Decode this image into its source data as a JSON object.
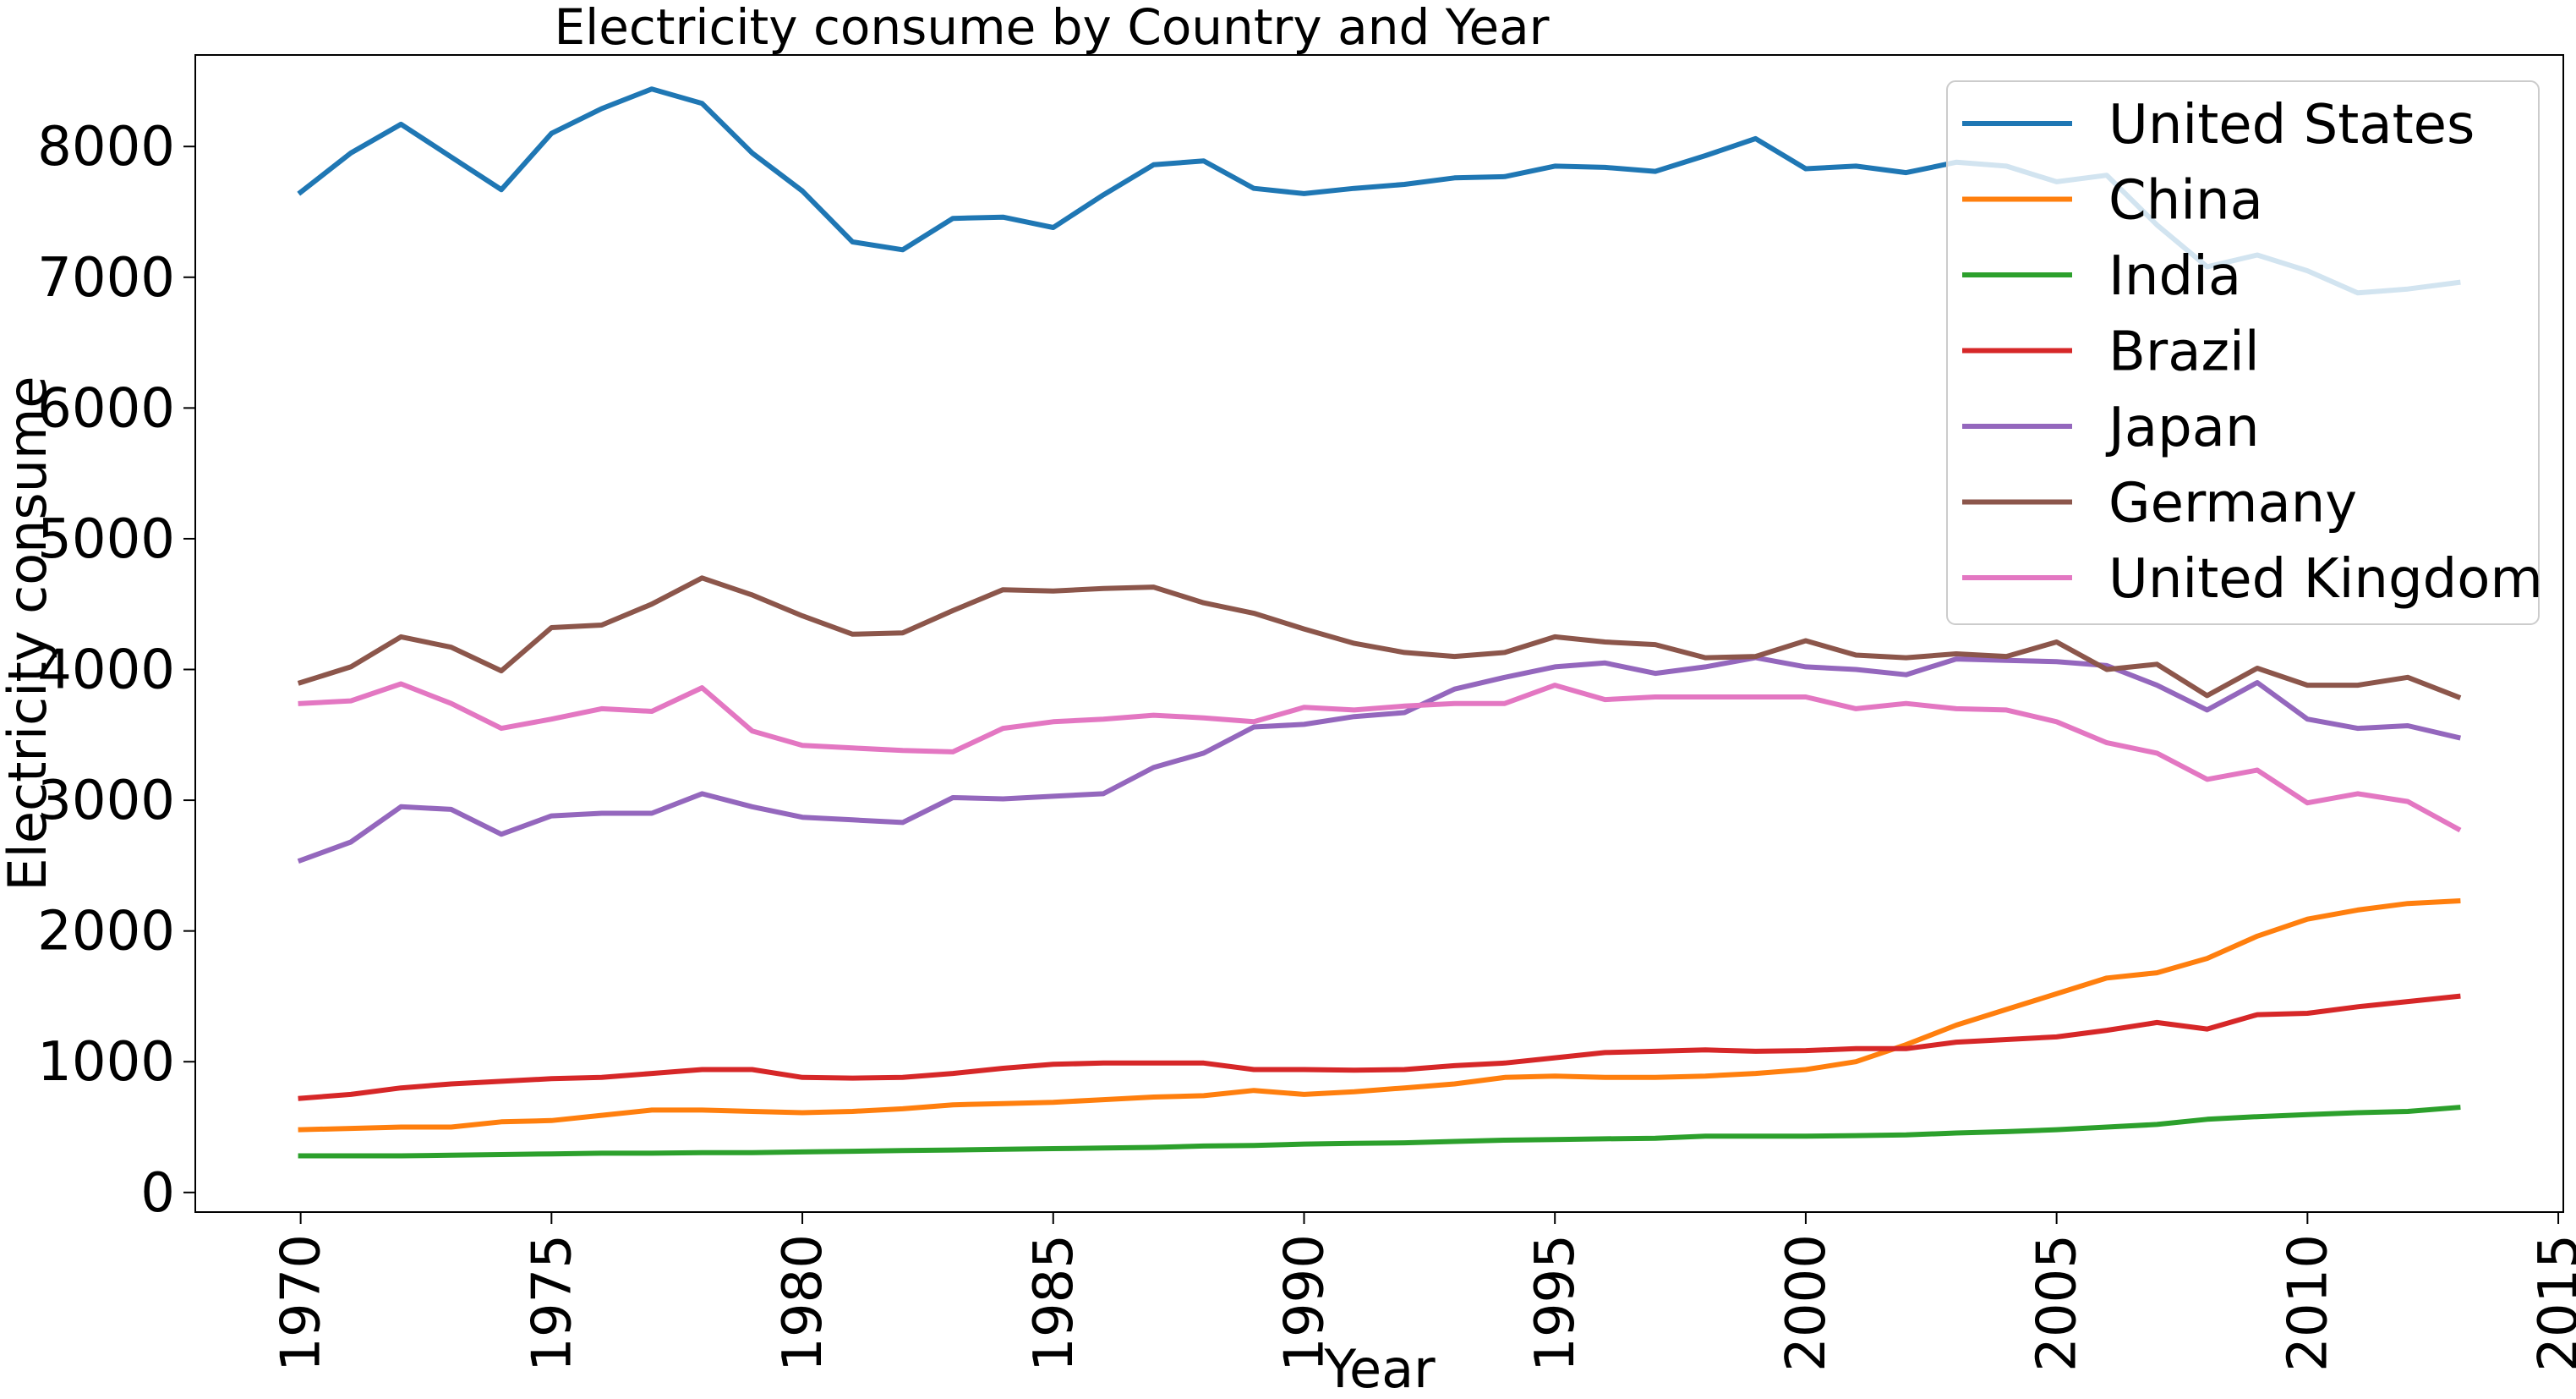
{
  "chart_data": {
    "type": "line",
    "title": "Electricity consume by Country and Year",
    "xlabel": "Year",
    "ylabel": "Electricity consume",
    "xlim": [
      1967.9,
      2015.1
    ],
    "ylim": [
      -150,
      8700
    ],
    "xticks": [
      "1970",
      "1975",
      "1980",
      "1985",
      "1990",
      "1995",
      "2000",
      "2005",
      "2010",
      "2015"
    ],
    "yticks": [
      "0",
      "1000",
      "2000",
      "3000",
      "4000",
      "5000",
      "6000",
      "7000",
      "8000"
    ],
    "grid": false,
    "legend_position": "top-right",
    "x": [
      1970,
      1971,
      1972,
      1973,
      1974,
      1975,
      1976,
      1977,
      1978,
      1979,
      1980,
      1981,
      1982,
      1983,
      1984,
      1985,
      1986,
      1987,
      1988,
      1989,
      1990,
      1991,
      1992,
      1993,
      1994,
      1995,
      1996,
      1997,
      1998,
      1999,
      2000,
      2001,
      2002,
      2003,
      2004,
      2005,
      2006,
      2007,
      2008,
      2009,
      2010,
      2011,
      2012,
      2013
    ],
    "series": [
      {
        "name": "United States",
        "color": "#1f77b4",
        "values": [
          7650,
          7950,
          8170,
          7920,
          7670,
          8100,
          8290,
          8440,
          8330,
          7950,
          7660,
          7270,
          7210,
          7450,
          7460,
          7380,
          7630,
          7860,
          7890,
          7680,
          7640,
          7680,
          7710,
          7760,
          7770,
          7850,
          7840,
          7810,
          7930,
          8060,
          7830,
          7850,
          7800,
          7880,
          7850,
          7730,
          7780,
          7400,
          7080,
          7170,
          7050,
          6880,
          6910,
          6960
        ]
      },
      {
        "name": "China",
        "color": "#ff7f0e",
        "values": [
          480,
          490,
          500,
          500,
          540,
          550,
          590,
          630,
          630,
          620,
          610,
          620,
          640,
          670,
          680,
          690,
          710,
          730,
          740,
          780,
          750,
          770,
          800,
          830,
          880,
          890,
          880,
          880,
          890,
          910,
          940,
          1000,
          1130,
          1280,
          1400,
          1520,
          1640,
          1680,
          1790,
          1960,
          2090,
          2160,
          2210,
          2230
        ]
      },
      {
        "name": "India",
        "color": "#2ca02c",
        "values": [
          280,
          280,
          280,
          285,
          290,
          295,
          300,
          300,
          305,
          305,
          310,
          315,
          320,
          325,
          330,
          335,
          340,
          345,
          355,
          360,
          370,
          375,
          380,
          390,
          400,
          405,
          410,
          415,
          430,
          430,
          430,
          435,
          440,
          455,
          465,
          480,
          500,
          520,
          560,
          580,
          595,
          610,
          620,
          650
        ]
      },
      {
        "name": "Brazil",
        "color": "#d62728",
        "values": [
          720,
          750,
          800,
          830,
          850,
          870,
          880,
          910,
          940,
          940,
          880,
          875,
          880,
          910,
          950,
          980,
          990,
          990,
          990,
          940,
          940,
          935,
          940,
          970,
          990,
          1030,
          1070,
          1080,
          1090,
          1080,
          1085,
          1100,
          1100,
          1150,
          1170,
          1190,
          1240,
          1300,
          1250,
          1360,
          1370,
          1420,
          1460,
          1500
        ]
      },
      {
        "name": "Japan",
        "color": "#9467bd",
        "values": [
          2540,
          2680,
          2950,
          2930,
          2740,
          2880,
          2900,
          2900,
          3050,
          2950,
          2870,
          2850,
          2830,
          3020,
          3010,
          3030,
          3050,
          3250,
          3360,
          3560,
          3580,
          3640,
          3670,
          3850,
          3940,
          4020,
          4050,
          3970,
          4020,
          4090,
          4020,
          4000,
          3960,
          4080,
          4070,
          4060,
          4030,
          3880,
          3690,
          3900,
          3620,
          3550,
          3570,
          3480
        ]
      },
      {
        "name": "Germany",
        "color": "#8c564b",
        "values": [
          3900,
          4020,
          4250,
          4170,
          3990,
          4320,
          4340,
          4500,
          4700,
          4570,
          4410,
          4270,
          4280,
          4450,
          4610,
          4600,
          4620,
          4630,
          4510,
          4430,
          4310,
          4200,
          4130,
          4100,
          4130,
          4250,
          4210,
          4190,
          4090,
          4100,
          4220,
          4110,
          4090,
          4120,
          4100,
          4210,
          4000,
          4040,
          3800,
          4010,
          3880,
          3880,
          3940,
          3790
        ]
      },
      {
        "name": "United Kingdom",
        "color": "#e377c2",
        "values": [
          3740,
          3760,
          3890,
          3740,
          3550,
          3620,
          3700,
          3680,
          3860,
          3530,
          3420,
          3400,
          3380,
          3370,
          3550,
          3600,
          3620,
          3650,
          3630,
          3600,
          3710,
          3690,
          3720,
          3740,
          3740,
          3880,
          3770,
          3790,
          3790,
          3790,
          3790,
          3700,
          3740,
          3700,
          3690,
          3600,
          3440,
          3360,
          3160,
          3230,
          2980,
          3050,
          2990,
          2780
        ]
      }
    ]
  }
}
